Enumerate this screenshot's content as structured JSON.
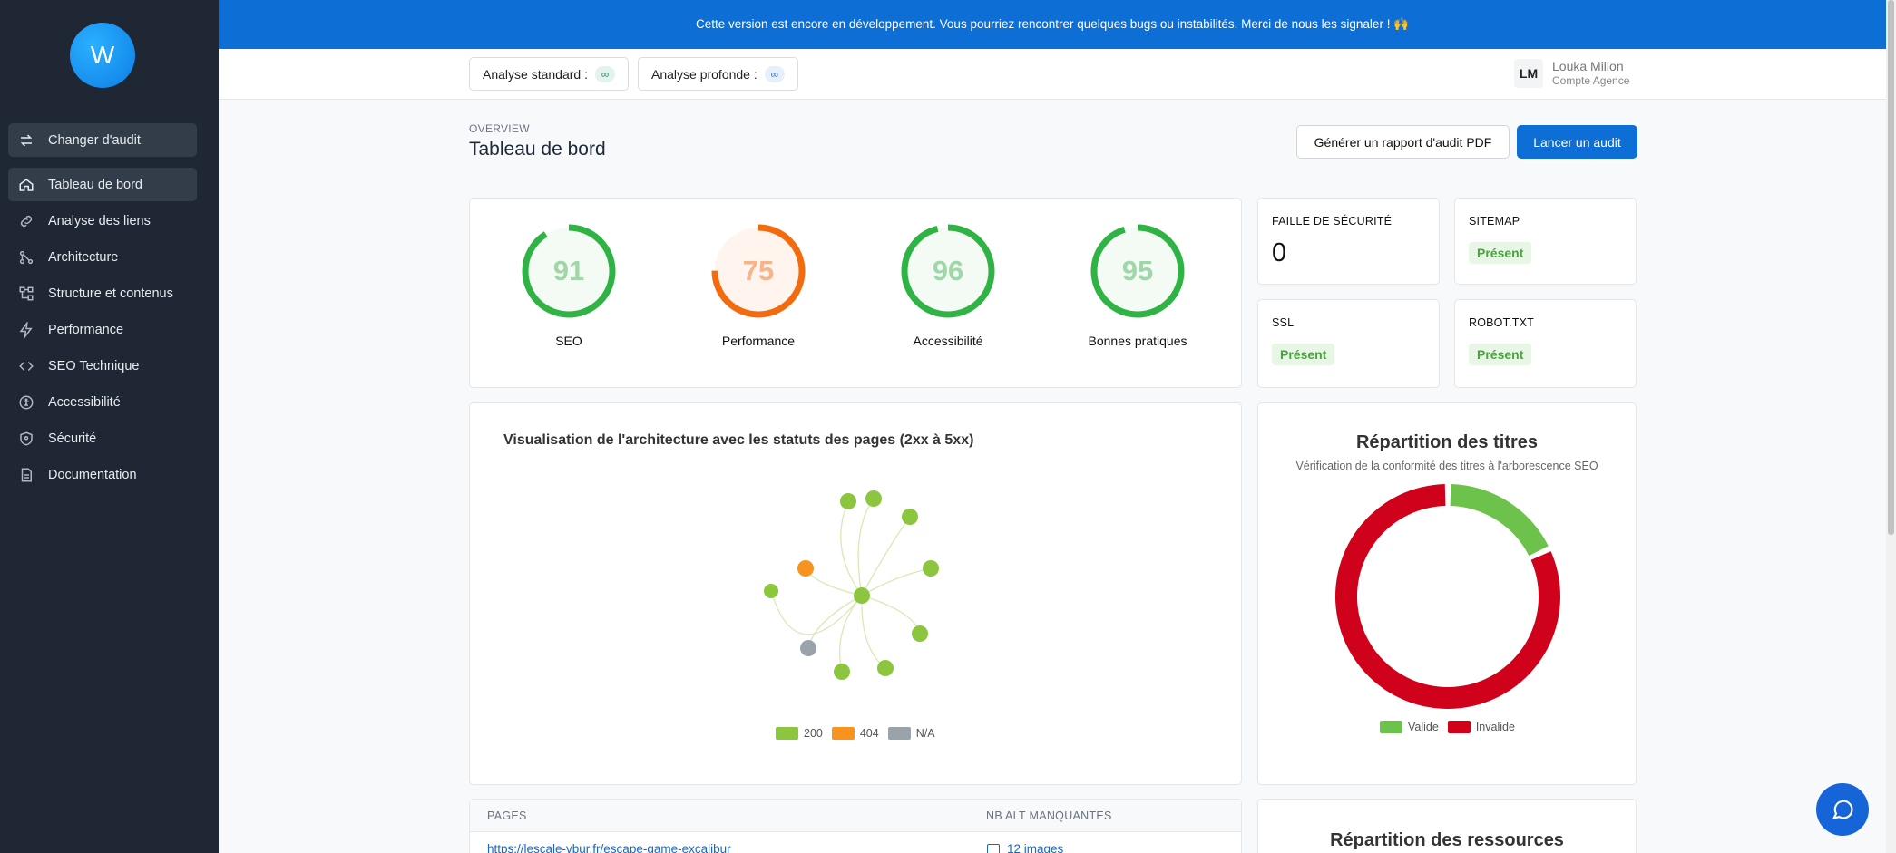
{
  "sidebar": {
    "logo_letter": "W",
    "switch_label": "Changer d'audit",
    "items": [
      {
        "label": "Tableau de bord",
        "icon": "home-icon"
      },
      {
        "label": "Analyse des liens",
        "icon": "link-icon"
      },
      {
        "label": "Architecture",
        "icon": "architecture-icon"
      },
      {
        "label": "Structure et contenus",
        "icon": "structure-icon"
      },
      {
        "label": "Performance",
        "icon": "bolt-icon"
      },
      {
        "label": "SEO Technique",
        "icon": "code-icon"
      },
      {
        "label": "Accessibilité",
        "icon": "accessibility-icon"
      },
      {
        "label": "Sécurité",
        "icon": "shield-icon"
      },
      {
        "label": "Documentation",
        "icon": "document-icon"
      }
    ]
  },
  "banner": {
    "text": "Cette version est encore en développement. Vous pourriez rencontrer quelques bugs ou instabilités. Merci de nous les signaler ! 🙌"
  },
  "header": {
    "standard_label": "Analyse standard :",
    "standard_value": "∞",
    "deep_label": "Analyse profonde :",
    "deep_value": "∞",
    "user_initials": "LM",
    "user_name": "Louka Millon",
    "user_role": "Compte Agence"
  },
  "page": {
    "overline": "OVERVIEW",
    "title": "Tableau de bord",
    "pdf_button": "Générer un rapport d'audit PDF",
    "launch_button": "Lancer un audit"
  },
  "scores": [
    {
      "label": "SEO",
      "value": 91,
      "color": "#2fb344",
      "text_color": "#9fd7a8"
    },
    {
      "label": "Performance",
      "value": 75,
      "color": "#f26b0f",
      "text_color": "#f7b48a"
    },
    {
      "label": "Accessibilité",
      "value": 96,
      "color": "#2fb344",
      "text_color": "#9fd7a8"
    },
    {
      "label": "Bonnes pratiques",
      "value": 95,
      "color": "#2fb344",
      "text_color": "#9fd7a8"
    }
  ],
  "stats": {
    "security_label": "FAILLE DE SÉCURITÉ",
    "security_value": "0",
    "sitemap_label": "SITEMAP",
    "sitemap_value": "Présent",
    "ssl_label": "SSL",
    "ssl_value": "Présent",
    "robot_label": "ROBOT.TXT",
    "robot_value": "Présent"
  },
  "architecture": {
    "title": "Visualisation de l'architecture avec les statuts des pages (2xx à 5xx)",
    "legend": [
      {
        "label": "200",
        "color": "#8cc63f"
      },
      {
        "label": "404",
        "color": "#f7931e"
      },
      {
        "label": "N/A",
        "color": "#9ba3aa"
      }
    ]
  },
  "titles_chart": {
    "title": "Répartition des titres",
    "subtitle": "Vérification de la conformité des titres à l'arborescence SEO",
    "legend": [
      {
        "label": "Valide",
        "color": "#6cc24a"
      },
      {
        "label": "Invalide",
        "color": "#d0021b"
      }
    ]
  },
  "chart_data": {
    "type": "pie",
    "categories": [
      "Valide",
      "Invalide"
    ],
    "values": [
      18,
      82
    ],
    "title": "Répartition des titres"
  },
  "table": {
    "col_pages": "PAGES",
    "col_alt": "NB ALT MANQUANTES",
    "row_url": "https://lescale-vbur.fr/escape-game-excalibur",
    "row_alt": "12 images"
  },
  "resources": {
    "title": "Répartition des ressources"
  }
}
